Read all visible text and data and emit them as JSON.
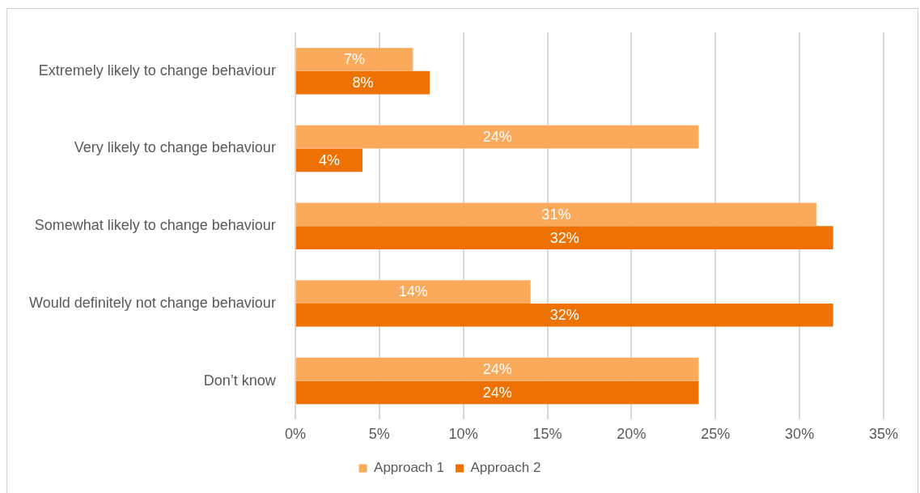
{
  "chart_data": {
    "type": "bar",
    "orientation": "horizontal",
    "categories": [
      "Extremely likely to change behaviour",
      "Very likely to change behaviour",
      "Somewhat likely to change behaviour",
      "Would definitely not change behaviour",
      "Don’t know"
    ],
    "series": [
      {
        "name": "Approach 1",
        "color": "#fba95b",
        "values": [
          7,
          24,
          31,
          14,
          24
        ],
        "value_labels": [
          "7%",
          "24%",
          "31%",
          "14%",
          "24%"
        ]
      },
      {
        "name": "Approach 2",
        "color": "#ee7203",
        "values": [
          8,
          4,
          32,
          32,
          24
        ],
        "value_labels": [
          "8%",
          "4%",
          "32%",
          "32%",
          "24%"
        ]
      }
    ],
    "xlim": [
      0,
      35
    ],
    "xticks": [
      {
        "value": 0,
        "label": "0%"
      },
      {
        "value": 5,
        "label": "5%"
      },
      {
        "value": 10,
        "label": "10%"
      },
      {
        "value": 15,
        "label": "15%"
      },
      {
        "value": 20,
        "label": "20%"
      },
      {
        "value": 25,
        "label": "25%"
      },
      {
        "value": 30,
        "label": "30%"
      },
      {
        "value": 35,
        "label": "35%"
      }
    ],
    "grid": "x",
    "legend": "bottom"
  }
}
